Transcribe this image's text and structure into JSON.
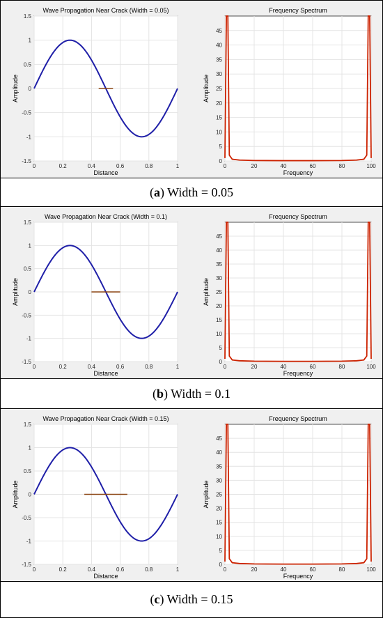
{
  "captions": [
    {
      "prefix": "(",
      "letter": "a",
      "text": ") Width = 0.05"
    },
    {
      "prefix": "(",
      "letter": "b",
      "text": ") Width = 0.1"
    },
    {
      "prefix": "(",
      "letter": "c",
      "text": ") Width = 0.15"
    }
  ],
  "colors": {
    "wave": "#1f1fa8",
    "crack": "#8b4513",
    "spectrum": "#cc2200"
  },
  "chart_data": [
    {
      "panel": "a",
      "type": "line",
      "title": "Wave Propagation Near Crack (Width = 0.05)",
      "xlabel": "Distance",
      "ylabel": "Amplitude",
      "xlim": [
        0,
        1
      ],
      "ylim": [
        -1.5,
        1.5
      ],
      "xticks": [
        0,
        0.2,
        0.4,
        0.6,
        0.8,
        1
      ],
      "yticks": [
        -1.5,
        -1,
        -0.5,
        0,
        0.5,
        1,
        1.5
      ],
      "series": [
        {
          "function": "sin(2*pi*x)",
          "x_range": [
            0,
            1
          ]
        }
      ],
      "crack": {
        "center": 0.5,
        "width": 0.05,
        "y": 0
      },
      "grid": true
    },
    {
      "panel": "a",
      "type": "line",
      "title": "Frequency Spectrum",
      "xlabel": "Frequency",
      "ylabel": "",
      "xlim": [
        0,
        100
      ],
      "ylim": [
        0,
        50
      ],
      "xticks": [
        0,
        20,
        40,
        60,
        80,
        100
      ],
      "yticks": [
        0,
        5,
        10,
        15,
        20,
        25,
        30,
        35,
        40,
        45
      ],
      "series": [
        {
          "x": [
            0,
            1,
            2,
            3,
            5,
            10,
            20,
            40,
            60,
            80,
            90,
            95,
            97,
            98,
            99,
            100
          ],
          "y": [
            1,
            50,
            50,
            2,
            0.6,
            0.3,
            0.15,
            0.1,
            0.1,
            0.15,
            0.3,
            0.6,
            2,
            50,
            50,
            1
          ]
        }
      ],
      "grid": true
    },
    {
      "panel": "b",
      "type": "line",
      "title": "Wave Propagation Near Crack (Width = 0.1)",
      "xlabel": "Distance",
      "ylabel": "Amplitude",
      "xlim": [
        0,
        1
      ],
      "ylim": [
        -1.5,
        1.5
      ],
      "xticks": [
        0,
        0.2,
        0.4,
        0.6,
        0.8,
        1
      ],
      "yticks": [
        -1.5,
        -1,
        -0.5,
        0,
        0.5,
        1,
        1.5
      ],
      "series": [
        {
          "function": "sin(2*pi*x)",
          "x_range": [
            0,
            1
          ]
        }
      ],
      "crack": {
        "center": 0.5,
        "width": 0.1,
        "y": 0
      },
      "grid": true
    },
    {
      "panel": "b",
      "type": "line",
      "title": "Frequency Spectrum",
      "xlabel": "Frequency",
      "ylabel": "",
      "xlim": [
        0,
        100
      ],
      "ylim": [
        0,
        50
      ],
      "xticks": [
        0,
        20,
        40,
        60,
        80,
        100
      ],
      "yticks": [
        0,
        5,
        10,
        15,
        20,
        25,
        30,
        35,
        40,
        45
      ],
      "series": [
        {
          "x": [
            0,
            1,
            2,
            3,
            5,
            10,
            20,
            40,
            60,
            80,
            90,
            95,
            97,
            98,
            99,
            100
          ],
          "y": [
            1,
            50,
            50,
            2,
            0.6,
            0.3,
            0.15,
            0.1,
            0.1,
            0.15,
            0.3,
            0.6,
            2,
            50,
            50,
            1
          ]
        }
      ],
      "grid": true
    },
    {
      "panel": "c",
      "type": "line",
      "title": "Wave Propagation Near Crack (Width = 0.15)",
      "xlabel": "Distance",
      "ylabel": "Amplitude",
      "xlim": [
        0,
        1
      ],
      "ylim": [
        -1.5,
        1.5
      ],
      "xticks": [
        0,
        0.2,
        0.4,
        0.6,
        0.8,
        1
      ],
      "yticks": [
        -1.5,
        -1,
        -0.5,
        0,
        0.5,
        1,
        1.5
      ],
      "series": [
        {
          "function": "sin(2*pi*x)",
          "x_range": [
            0,
            1
          ]
        }
      ],
      "crack": {
        "center": 0.5,
        "width": 0.15,
        "y": 0
      },
      "grid": true
    },
    {
      "panel": "c",
      "type": "line",
      "title": "Frequency Spectrum",
      "xlabel": "Frequency",
      "ylabel": "",
      "xlim": [
        0,
        100
      ],
      "ylim": [
        0,
        50
      ],
      "xticks": [
        0,
        20,
        40,
        60,
        80,
        100
      ],
      "yticks": [
        0,
        5,
        10,
        15,
        20,
        25,
        30,
        35,
        40,
        45
      ],
      "series": [
        {
          "x": [
            0,
            1,
            2,
            3,
            5,
            10,
            20,
            40,
            60,
            80,
            90,
            95,
            97,
            98,
            99,
            100
          ],
          "y": [
            1,
            50,
            50,
            2,
            0.6,
            0.3,
            0.15,
            0.1,
            0.1,
            0.15,
            0.3,
            0.6,
            2,
            50,
            50,
            1
          ]
        }
      ],
      "grid": true
    }
  ]
}
